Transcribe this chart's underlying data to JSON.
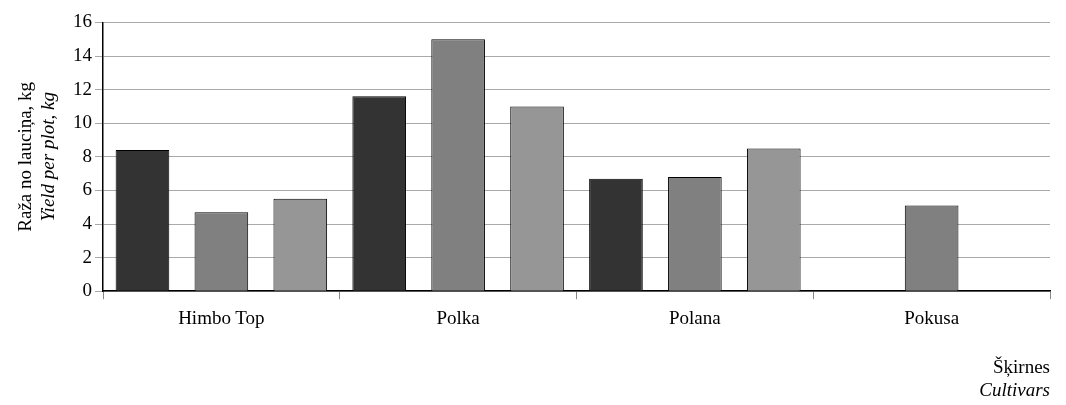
{
  "chart_data": {
    "type": "bar",
    "xlabel": "Šķirnes\nCultivars",
    "ylabel": "Raža no lauciņa, kg\nYield per plot, kg",
    "categories": [
      "Himbo Top",
      "Polka",
      "Polana",
      "Pokusa"
    ],
    "series": [
      {
        "color": "#333333",
        "values": [
          8.4,
          11.6,
          6.7,
          null
        ]
      },
      {
        "color": "#808080",
        "values": [
          4.7,
          15.0,
          6.8,
          5.1
        ]
      },
      {
        "color": "#969696",
        "values": [
          5.5,
          11.0,
          8.5,
          null
        ]
      }
    ],
    "ylim": [
      0,
      16
    ],
    "yticks": [
      0,
      2,
      4,
      6,
      8,
      10,
      12,
      14,
      16
    ],
    "grid": "y",
    "legend": false
  }
}
